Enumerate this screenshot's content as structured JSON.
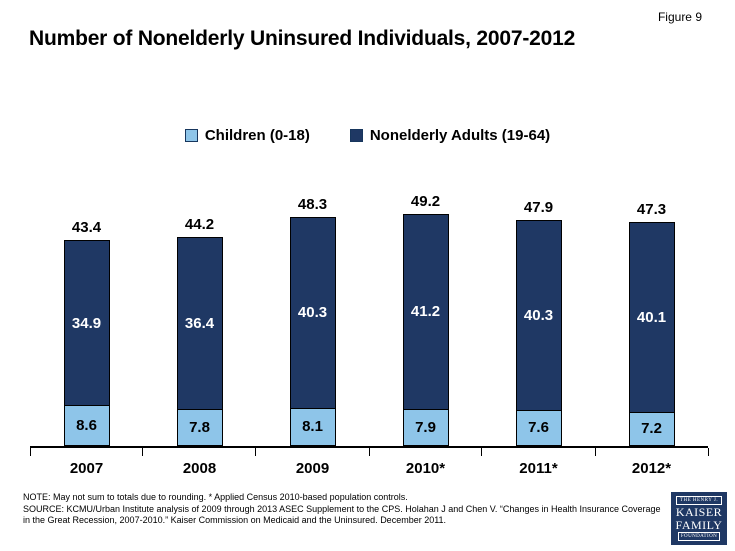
{
  "figure_label": "Figure 9",
  "title": "Number of Nonelderly Uninsured Individuals, 2007-2012",
  "legend": [
    {
      "label": "Children (0-18)",
      "color": "#8EC5E9"
    },
    {
      "label": "Nonelderly Adults (19-64)",
      "color": "#1F3864"
    }
  ],
  "chart_data": {
    "type": "bar",
    "stacked": true,
    "title": "Number of Nonelderly Uninsured Individuals, 2007-2012",
    "categories": [
      "2007",
      "2008",
      "2009",
      "2010*",
      "2011*",
      "2012*"
    ],
    "series": [
      {
        "name": "Children (0-18)",
        "color": "#8EC5E9",
        "values": [
          8.6,
          7.8,
          8.1,
          7.9,
          7.6,
          7.2
        ]
      },
      {
        "name": "Nonelderly Adults (19-64)",
        "color": "#1F3864",
        "values": [
          34.9,
          36.4,
          40.3,
          41.2,
          40.3,
          40.1
        ]
      }
    ],
    "totals": [
      43.4,
      44.2,
      48.3,
      49.2,
      47.9,
      47.3
    ],
    "xlabel": "",
    "ylabel": "",
    "ylim": [
      0,
      55
    ],
    "grid": false,
    "legend_position": "top-center",
    "units": "millions"
  },
  "note": "NOTE: May not sum to totals due to rounding. * Applied Census 2010-based population controls.",
  "source": "SOURCE: KCMU/Urban Institute analysis of 2009 through 2013 ASEC Supplement to the CPS. Holahan J and Chen V. “Changes in Health Insurance Coverage in the Great Recession, 2007-2010.” Kaiser Commission on Medicaid and the Uninsured. December 2011.",
  "logo": {
    "top_line": "THE HENRY J.",
    "line1": "KAISER",
    "line2": "FAMILY",
    "bottom_line": "FOUNDATION",
    "bg_color": "#1F3864"
  }
}
